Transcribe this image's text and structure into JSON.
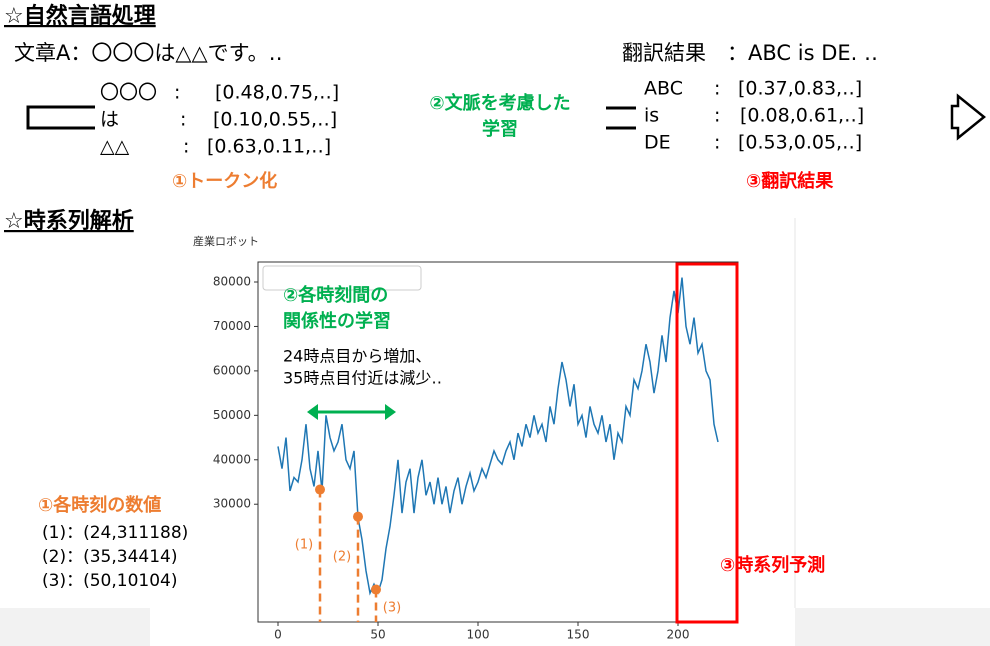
{
  "nlp": {
    "heading": "☆自然言語処理",
    "sentence": "文章A：〇〇〇は△△です。‥",
    "translation": "翻訳結果　：ABC is DE. ‥",
    "tokens": [
      {
        "word": "〇〇〇",
        "colon": ":",
        "vec": "[0.48,0.75,‥]"
      },
      {
        "word": "は",
        "colon": ":",
        "vec": "[0.10,0.55,‥]"
      },
      {
        "word": "△△",
        "colon": ":",
        "vec": "[0.63,0.11,‥]"
      }
    ],
    "step1": "①トークン化",
    "step2": [
      "②文脈を考慮した",
      "学習"
    ],
    "outputs": [
      {
        "word": "ABC",
        "colon": ":",
        "vec": "[0.37,0.83,‥]"
      },
      {
        "word": "is",
        "colon": ":",
        "vec": "[0.08,0.61,‥]"
      },
      {
        "word": "DE",
        "colon": ":",
        "vec": "[0.53,0.05,‥]"
      }
    ],
    "step3": "③翻訳結果"
  },
  "ts": {
    "heading": "☆時系列解析",
    "step1": "①各時刻の数値",
    "values": [
      "(1)：(24,311188)",
      "(2)：(35,34414)",
      "(3)：(50,10104)"
    ],
    "step2": [
      "②各時刻間の",
      "関係性の学習"
    ],
    "note": [
      "24時点目から増加、",
      "35時点目付近は減少‥"
    ],
    "step3": "③時系列予測"
  },
  "chart_data": {
    "type": "line",
    "title": "産業ロボット",
    "color": "#1f77b4",
    "x": [
      0,
      2,
      4,
      6,
      8,
      10,
      12,
      14,
      16,
      18,
      20,
      22,
      24,
      26,
      28,
      30,
      32,
      34,
      36,
      38,
      40,
      42,
      44,
      46,
      48,
      50,
      52,
      54,
      56,
      58,
      60,
      62,
      64,
      66,
      68,
      70,
      72,
      74,
      76,
      78,
      80,
      82,
      84,
      86,
      88,
      90,
      92,
      94,
      96,
      98,
      100,
      102,
      104,
      106,
      108,
      110,
      112,
      114,
      116,
      118,
      120,
      122,
      124,
      126,
      128,
      130,
      132,
      134,
      136,
      138,
      140,
      142,
      144,
      146,
      148,
      150,
      152,
      154,
      156,
      158,
      160,
      162,
      164,
      166,
      168,
      170,
      172,
      174,
      176,
      178,
      180,
      182,
      184,
      186,
      188,
      190,
      192,
      194,
      196,
      198,
      200,
      202,
      204,
      206,
      208,
      210,
      212,
      214,
      216,
      218,
      220
    ],
    "values": [
      43000,
      38000,
      45000,
      33000,
      36000,
      35000,
      40000,
      48000,
      38000,
      34000,
      42000,
      33000,
      50000,
      45000,
      42000,
      44000,
      48000,
      40000,
      38000,
      42000,
      27000,
      22000,
      15000,
      10000,
      12000,
      10100,
      13000,
      20000,
      25000,
      32000,
      40000,
      28000,
      35000,
      38000,
      28000,
      36000,
      40000,
      32000,
      35000,
      30000,
      36000,
      30000,
      34000,
      28000,
      33000,
      36000,
      30000,
      34000,
      37000,
      33000,
      35000,
      38000,
      36000,
      39000,
      42000,
      40000,
      39000,
      42000,
      44000,
      40000,
      46000,
      43000,
      48000,
      45000,
      50000,
      46000,
      48000,
      44000,
      52000,
      48000,
      56000,
      62000,
      58000,
      52000,
      57000,
      48000,
      50000,
      45000,
      52000,
      48000,
      46000,
      50000,
      44000,
      48000,
      40000,
      46000,
      44000,
      52000,
      50000,
      58000,
      56000,
      60000,
      66000,
      62000,
      55000,
      60000,
      68000,
      62000,
      72000,
      78000,
      73000,
      81000,
      70000,
      66000,
      72000,
      64000,
      66000,
      60000,
      58000,
      48000,
      44000
    ],
    "xlim": [
      -10,
      230
    ],
    "ylim": [
      3500,
      84500
    ],
    "xticks": [
      0,
      50,
      100,
      150,
      200
    ],
    "yticks": [
      30000,
      40000,
      50000,
      60000,
      70000,
      80000
    ],
    "markers": [
      {
        "x": 21,
        "y": 33300,
        "label": "(1)"
      },
      {
        "x": 40,
        "y": 27200,
        "label": "(2)"
      },
      {
        "x": 49,
        "y": 10800,
        "label": "(3)"
      }
    ]
  }
}
